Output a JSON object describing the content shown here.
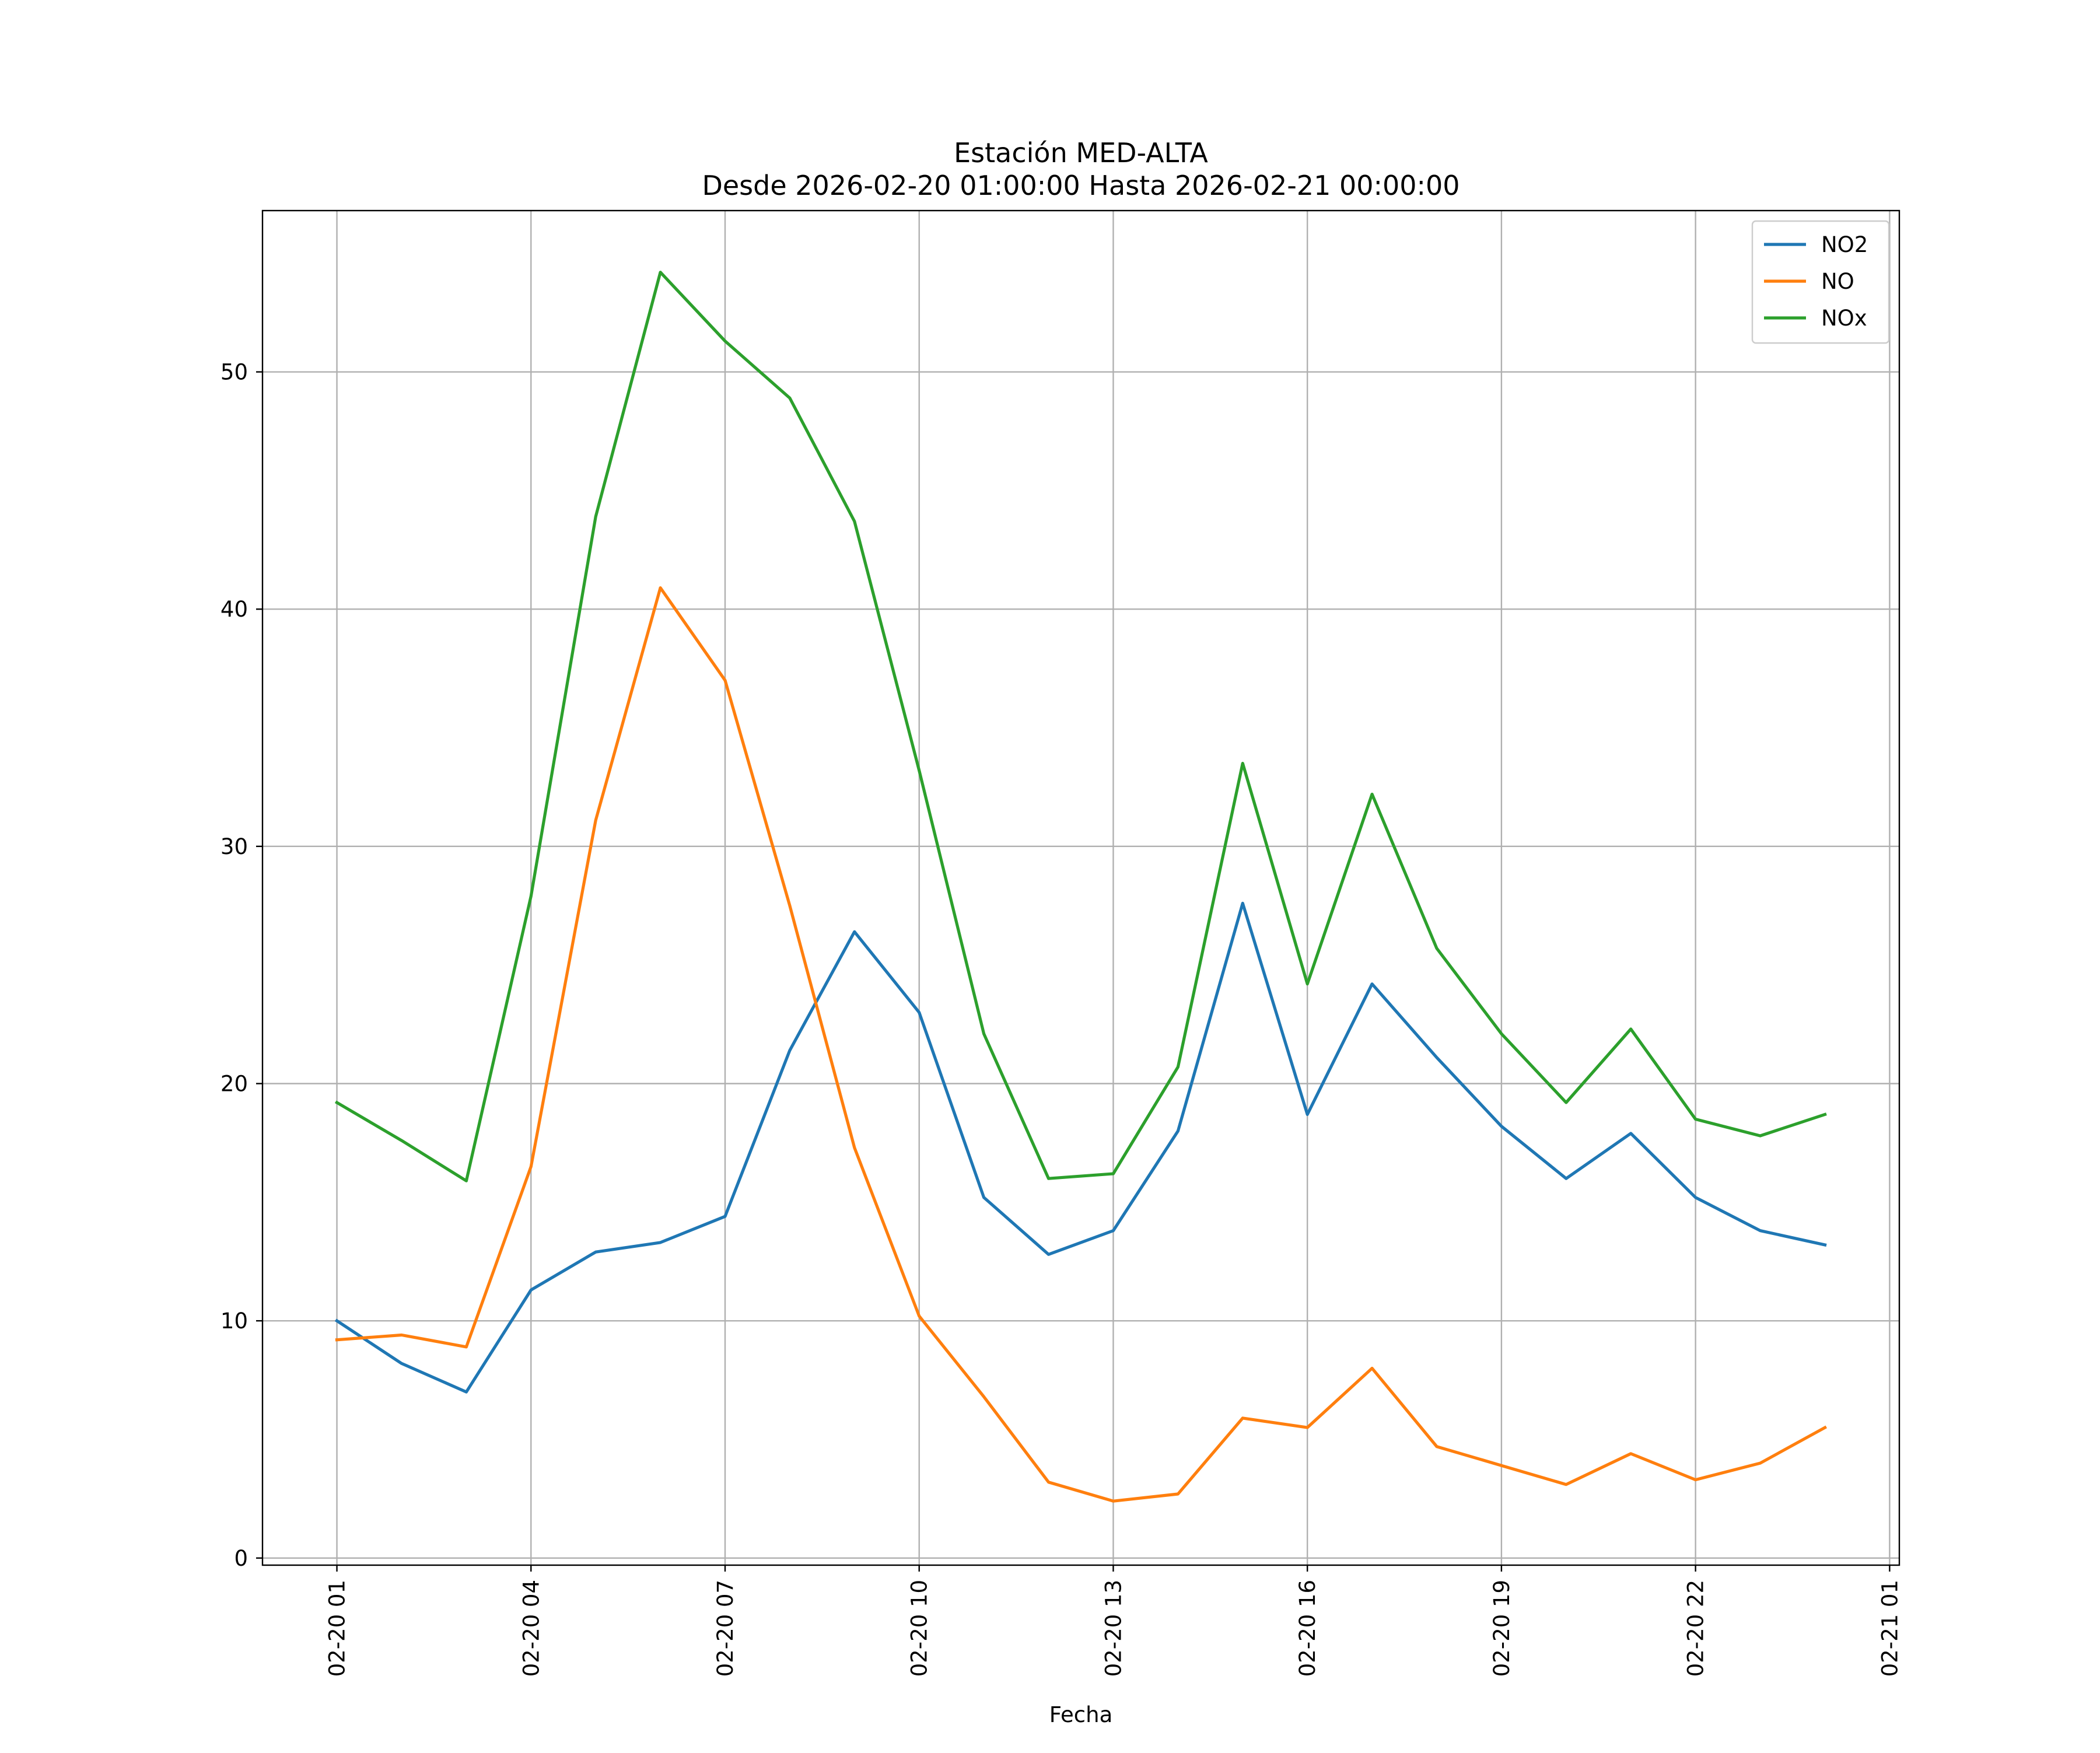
{
  "chart_data": {
    "type": "line",
    "title": "Estación MED-ALTA",
    "subtitle": "Desde 2026-02-20 01:00:00 Hasta 2026-02-21 00:00:00",
    "xlabel": "Fecha",
    "ylabel": "",
    "x": [
      "2026-02-20 01:00",
      "2026-02-20 02:00",
      "2026-02-20 03:00",
      "2026-02-20 04:00",
      "2026-02-20 05:00",
      "2026-02-20 06:00",
      "2026-02-20 07:00",
      "2026-02-20 08:00",
      "2026-02-20 09:00",
      "2026-02-20 10:00",
      "2026-02-20 11:00",
      "2026-02-20 12:00",
      "2026-02-20 13:00",
      "2026-02-20 14:00",
      "2026-02-20 15:00",
      "2026-02-20 16:00",
      "2026-02-20 17:00",
      "2026-02-20 18:00",
      "2026-02-20 19:00",
      "2026-02-20 20:00",
      "2026-02-20 21:00",
      "2026-02-20 22:00",
      "2026-02-20 23:00",
      "2026-02-21 00:00"
    ],
    "xlim": [
      "2026-02-19 23:51",
      "2026-02-21 01:09"
    ],
    "ylim": [
      -0.3,
      56.8
    ],
    "x_ticks": [
      {
        "value": "2026-02-20 01:00",
        "label": "02-20 01"
      },
      {
        "value": "2026-02-20 04:00",
        "label": "02-20 04"
      },
      {
        "value": "2026-02-20 07:00",
        "label": "02-20 07"
      },
      {
        "value": "2026-02-20 10:00",
        "label": "02-20 10"
      },
      {
        "value": "2026-02-20 13:00",
        "label": "02-20 13"
      },
      {
        "value": "2026-02-20 16:00",
        "label": "02-20 16"
      },
      {
        "value": "2026-02-20 19:00",
        "label": "02-20 19"
      },
      {
        "value": "2026-02-20 22:00",
        "label": "02-20 22"
      },
      {
        "value": "2026-02-21 01:00",
        "label": "02-21 01"
      }
    ],
    "y_ticks": [
      0,
      10,
      20,
      30,
      40,
      50
    ],
    "grid": true,
    "legend_position": "top-right",
    "series": [
      {
        "name": "NO2",
        "color": "#1f77b4",
        "values": [
          10.0,
          8.2,
          7.0,
          11.3,
          12.9,
          13.3,
          14.4,
          21.4,
          26.4,
          23.0,
          15.2,
          12.8,
          13.8,
          18.0,
          27.6,
          18.7,
          24.2,
          21.1,
          18.2,
          16.0,
          17.9,
          15.2,
          13.8,
          13.2
        ]
      },
      {
        "name": "NO",
        "color": "#ff7f0e",
        "values": [
          9.2,
          9.4,
          8.9,
          16.5,
          31.1,
          40.9,
          37.0,
          27.5,
          17.3,
          10.2,
          6.8,
          3.2,
          2.4,
          2.7,
          5.9,
          5.5,
          8.0,
          4.7,
          3.9,
          3.1,
          4.4,
          3.3,
          4.0,
          5.5
        ]
      },
      {
        "name": "NOx",
        "color": "#2ca02c",
        "values": [
          19.2,
          17.6,
          15.9,
          27.9,
          43.9,
          54.2,
          51.3,
          48.9,
          43.7,
          33.2,
          22.1,
          16.0,
          16.2,
          20.7,
          33.5,
          24.2,
          32.2,
          25.7,
          22.1,
          19.2,
          22.3,
          18.5,
          17.8,
          18.7
        ]
      }
    ]
  }
}
